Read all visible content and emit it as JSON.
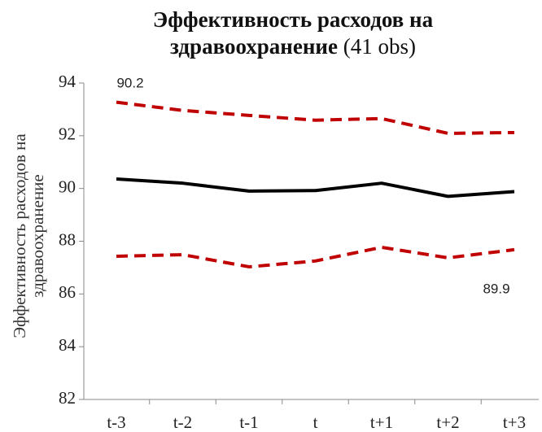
{
  "chart_data": {
    "type": "line",
    "title": "Эффективность расходов на здравоохранение",
    "subtitle": "(41 obs)",
    "y_label": "Эффективность расходов на здравоохранение",
    "categories": [
      "t-3",
      "t-2",
      "t-1",
      "t",
      "t+1",
      "t+2",
      "t+3"
    ],
    "series": [
      {
        "color": "#c00000",
        "style": "dashed",
        "values": [
          93.27,
          92.96,
          92.77,
          92.59,
          92.65,
          92.09,
          92.12
        ]
      },
      {
        "color": "#000000",
        "style": "solid",
        "values": [
          90.36,
          90.2,
          89.9,
          89.92,
          90.2,
          89.7,
          89.88
        ]
      },
      {
        "color": "#c00000",
        "style": "dashed",
        "values": [
          87.43,
          87.49,
          87.03,
          87.25,
          87.77,
          87.37,
          87.68
        ]
      }
    ],
    "annotations": [
      "90.2",
      "89.9"
    ],
    "ylim": [
      82,
      94
    ],
    "yticks": [
      82,
      84,
      86,
      88,
      90,
      92,
      94
    ],
    "grid": false
  }
}
